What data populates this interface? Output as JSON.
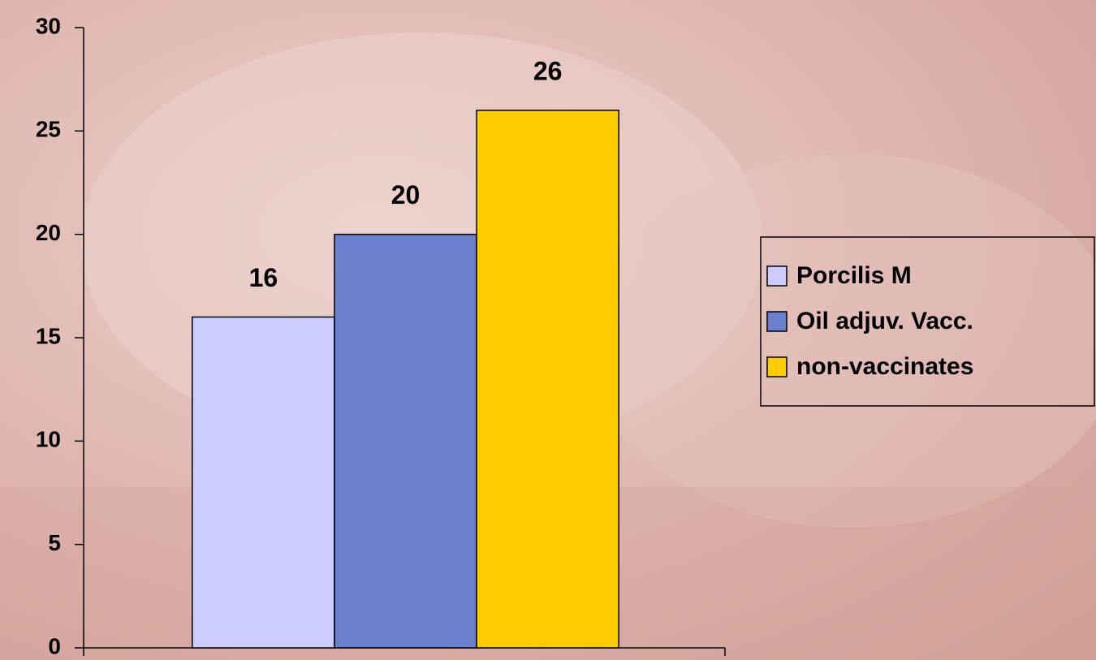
{
  "chart_data": {
    "type": "bar",
    "categories": [
      null
    ],
    "series": [
      {
        "name": "Porcilis M",
        "color": "#ccccff",
        "values": [
          16
        ]
      },
      {
        "name": "Oil adjuv. Vacc.",
        "color": "#6b7fcc",
        "values": [
          20
        ]
      },
      {
        "name": "non-vaccinates",
        "color": "#ffcc00",
        "values": [
          26
        ]
      }
    ],
    "ylim": [
      0,
      30
    ],
    "yticks": [
      0,
      5,
      10,
      15,
      20,
      25,
      30
    ],
    "grid": false,
    "legend": "right"
  }
}
